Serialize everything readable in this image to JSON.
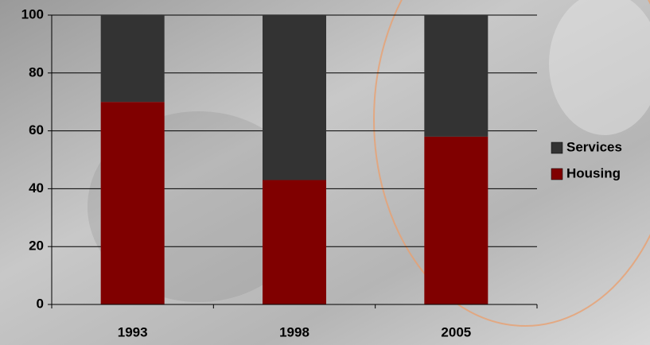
{
  "chart_data": {
    "type": "stacked_bar",
    "categories": [
      "1993",
      "1998",
      "2005"
    ],
    "series": [
      {
        "name": "Housing",
        "color": "#800000",
        "values": [
          70,
          43,
          58
        ]
      },
      {
        "name": "Services",
        "color": "#333333",
        "values": [
          30,
          57,
          42
        ]
      }
    ],
    "ylim": [
      0,
      100
    ],
    "yticks": [
      0,
      20,
      40,
      60,
      80,
      100
    ],
    "grid": true,
    "legend": "right"
  }
}
